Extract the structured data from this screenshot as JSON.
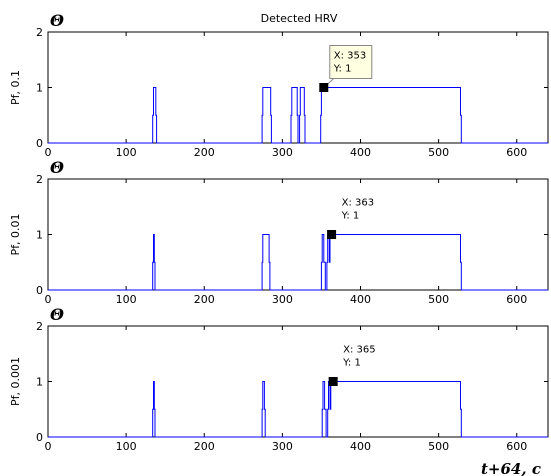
{
  "figure": {
    "title": "Detected HRV",
    "corner_label": "t+64, c"
  },
  "chart_data": [
    {
      "type": "line",
      "title": "Detected HRV",
      "panel_label": "Θ",
      "ylabel": "Pf, 0.1",
      "xlim": [
        0,
        640
      ],
      "ylim": [
        0,
        2
      ],
      "xticks": [
        0,
        100,
        200,
        300,
        400,
        500,
        600
      ],
      "yticks": [
        0,
        1,
        2
      ],
      "line_color": "#0000ff",
      "x": [
        0,
        134,
        134,
        135,
        135,
        138,
        138,
        139,
        139,
        274,
        274,
        275,
        275,
        285,
        285,
        286,
        286,
        311,
        311,
        312,
        312,
        319,
        319,
        320,
        320,
        322,
        322,
        323,
        323,
        328,
        328,
        329,
        329,
        349,
        349,
        350,
        350,
        353,
        353,
        528,
        528,
        529,
        529,
        640
      ],
      "y": [
        0,
        0,
        0.5,
        0.5,
        1,
        1,
        0.5,
        0.5,
        0,
        0,
        0.5,
        0.5,
        1,
        1,
        0.5,
        0.5,
        0,
        0,
        0.5,
        0.5,
        1,
        1,
        0.5,
        0.5,
        0,
        0,
        0.5,
        0.5,
        1,
        1,
        0.5,
        0.5,
        0,
        0,
        0.5,
        0.5,
        1,
        1,
        1,
        1,
        0.5,
        0.5,
        0,
        0
      ],
      "datatip": {
        "x": 353,
        "y": 1,
        "line1": "X: 353",
        "line2": "Y: 1",
        "boxed": true
      }
    },
    {
      "type": "line",
      "panel_label": "Θ",
      "ylabel": "Pf, 0.01",
      "xlim": [
        0,
        640
      ],
      "ylim": [
        0,
        2
      ],
      "xticks": [
        0,
        100,
        200,
        300,
        400,
        500,
        600
      ],
      "yticks": [
        0,
        1,
        2
      ],
      "line_color": "#0000ff",
      "x": [
        0,
        134,
        134,
        135,
        135,
        136,
        136,
        137,
        137,
        274,
        274,
        275,
        275,
        283,
        283,
        284,
        284,
        350,
        350,
        351,
        351,
        353,
        353,
        355,
        355,
        357,
        357,
        358,
        358,
        360,
        360,
        361,
        361,
        363,
        528,
        528,
        529,
        529,
        640
      ],
      "y": [
        0,
        0,
        0.5,
        0.5,
        1,
        1,
        0.5,
        0.5,
        0,
        0,
        0.5,
        0.5,
        1,
        1,
        0.5,
        0.5,
        0,
        0,
        0.5,
        0.5,
        1,
        1,
        0.5,
        0.5,
        0,
        0,
        0.5,
        0.5,
        1,
        1,
        0.5,
        0.5,
        1,
        1,
        1,
        0.5,
        0.5,
        0,
        0
      ],
      "datatip": {
        "x": 363,
        "y": 1,
        "line1": "X: 363",
        "line2": "Y: 1",
        "boxed": false
      }
    },
    {
      "type": "line",
      "panel_label": "Θ",
      "ylabel": "Pf, 0.001",
      "xlim": [
        0,
        640
      ],
      "ylim": [
        0,
        2
      ],
      "xticks": [
        0,
        100,
        200,
        300,
        400,
        500,
        600
      ],
      "yticks": [
        0,
        1,
        2
      ],
      "line_color": "#0000ff",
      "x": [
        0,
        134,
        134,
        135,
        135,
        136,
        136,
        137,
        137,
        274,
        274,
        275,
        275,
        277,
        277,
        278,
        278,
        351,
        351,
        352,
        352,
        354,
        354,
        356,
        356,
        358,
        358,
        359,
        359,
        361,
        361,
        362,
        362,
        365,
        528,
        528,
        529,
        529,
        640
      ],
      "y": [
        0,
        0,
        0.5,
        0.5,
        1,
        1,
        0.5,
        0.5,
        0,
        0,
        0.5,
        0.5,
        1,
        1,
        0.5,
        0.5,
        0,
        0,
        0.5,
        0.5,
        1,
        1,
        0.5,
        0.5,
        0,
        0,
        0.5,
        0.5,
        1,
        1,
        0.5,
        0.5,
        1,
        1,
        1,
        0.5,
        0.5,
        0,
        0
      ],
      "datatip": {
        "x": 365,
        "y": 1,
        "line1": "X: 365",
        "line2": "Y: 1",
        "boxed": false
      }
    }
  ]
}
